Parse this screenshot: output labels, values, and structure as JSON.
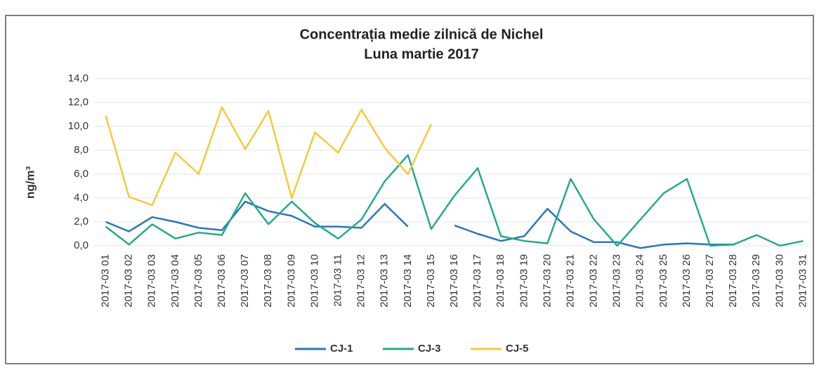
{
  "chart_data": {
    "type": "line",
    "title": "Concentrația medie zilnică de Nichel",
    "subtitle": "Luna martie 2017",
    "y_label": "ng/m³",
    "categories": [
      "2017-03 01",
      "2017-03 02",
      "2017-03 03",
      "2017-03 04",
      "2017-03 05",
      "2017-03 06",
      "2017-03 07",
      "2017-03 08",
      "2017-03 09",
      "2017-03 10",
      "2017-03 11",
      "2017-03 12",
      "2017-03 13",
      "2017-03 14",
      "2017-03 15",
      "2017-03 16",
      "2017-03 17",
      "2017-03 18",
      "2017-03 19",
      "2017-03 20",
      "2017-03 21",
      "2017-03 22",
      "2017-03 23",
      "2017-03 24",
      "2017-03 25",
      "2017-03 26",
      "2017-03 27",
      "2017-03 28",
      "2017-03 29",
      "2017-03 30",
      "2017-03 31"
    ],
    "series": [
      {
        "name": "CJ-1",
        "color": "#2e75b6",
        "values": [
          2.0,
          1.2,
          2.4,
          2.0,
          1.5,
          1.3,
          3.7,
          2.9,
          2.5,
          1.6,
          1.6,
          1.5,
          3.5,
          1.6,
          null,
          1.7,
          1.0,
          0.4,
          0.8,
          3.1,
          1.2,
          0.3,
          0.3,
          -0.2,
          0.1,
          0.2,
          0.1,
          0.1,
          null,
          null,
          null
        ]
      },
      {
        "name": "CJ-3",
        "color": "#2aa88a",
        "values": [
          1.6,
          0.1,
          1.8,
          0.6,
          1.1,
          0.9,
          4.4,
          1.8,
          3.7,
          1.9,
          0.6,
          2.2,
          5.4,
          7.6,
          1.4,
          4.2,
          6.5,
          0.8,
          0.4,
          0.2,
          5.6,
          2.2,
          0.0,
          2.2,
          4.4,
          5.6,
          0.0,
          0.1,
          0.9,
          0.0,
          0.4
        ]
      },
      {
        "name": "CJ-5",
        "color": "#f5c842",
        "values": [
          10.9,
          4.1,
          3.4,
          7.8,
          6.0,
          11.6,
          8.1,
          11.3,
          4.0,
          9.5,
          7.8,
          11.4,
          8.2,
          6.0,
          10.2,
          null,
          null,
          null,
          null,
          null,
          null,
          null,
          null,
          null,
          null,
          null,
          null,
          null,
          null,
          null,
          null
        ]
      }
    ],
    "ylim": [
      0,
      14
    ],
    "yticks": [
      {
        "value": 0,
        "label": "0,0"
      },
      {
        "value": 2,
        "label": "2,0"
      },
      {
        "value": 4,
        "label": "4,0"
      },
      {
        "value": 6,
        "label": "6,0"
      },
      {
        "value": 8,
        "label": "8,0"
      },
      {
        "value": 10,
        "label": "10,0"
      },
      {
        "value": 12,
        "label": "12,0"
      },
      {
        "value": 14,
        "label": "14,0"
      }
    ],
    "grid": true,
    "legend": "bottom"
  }
}
